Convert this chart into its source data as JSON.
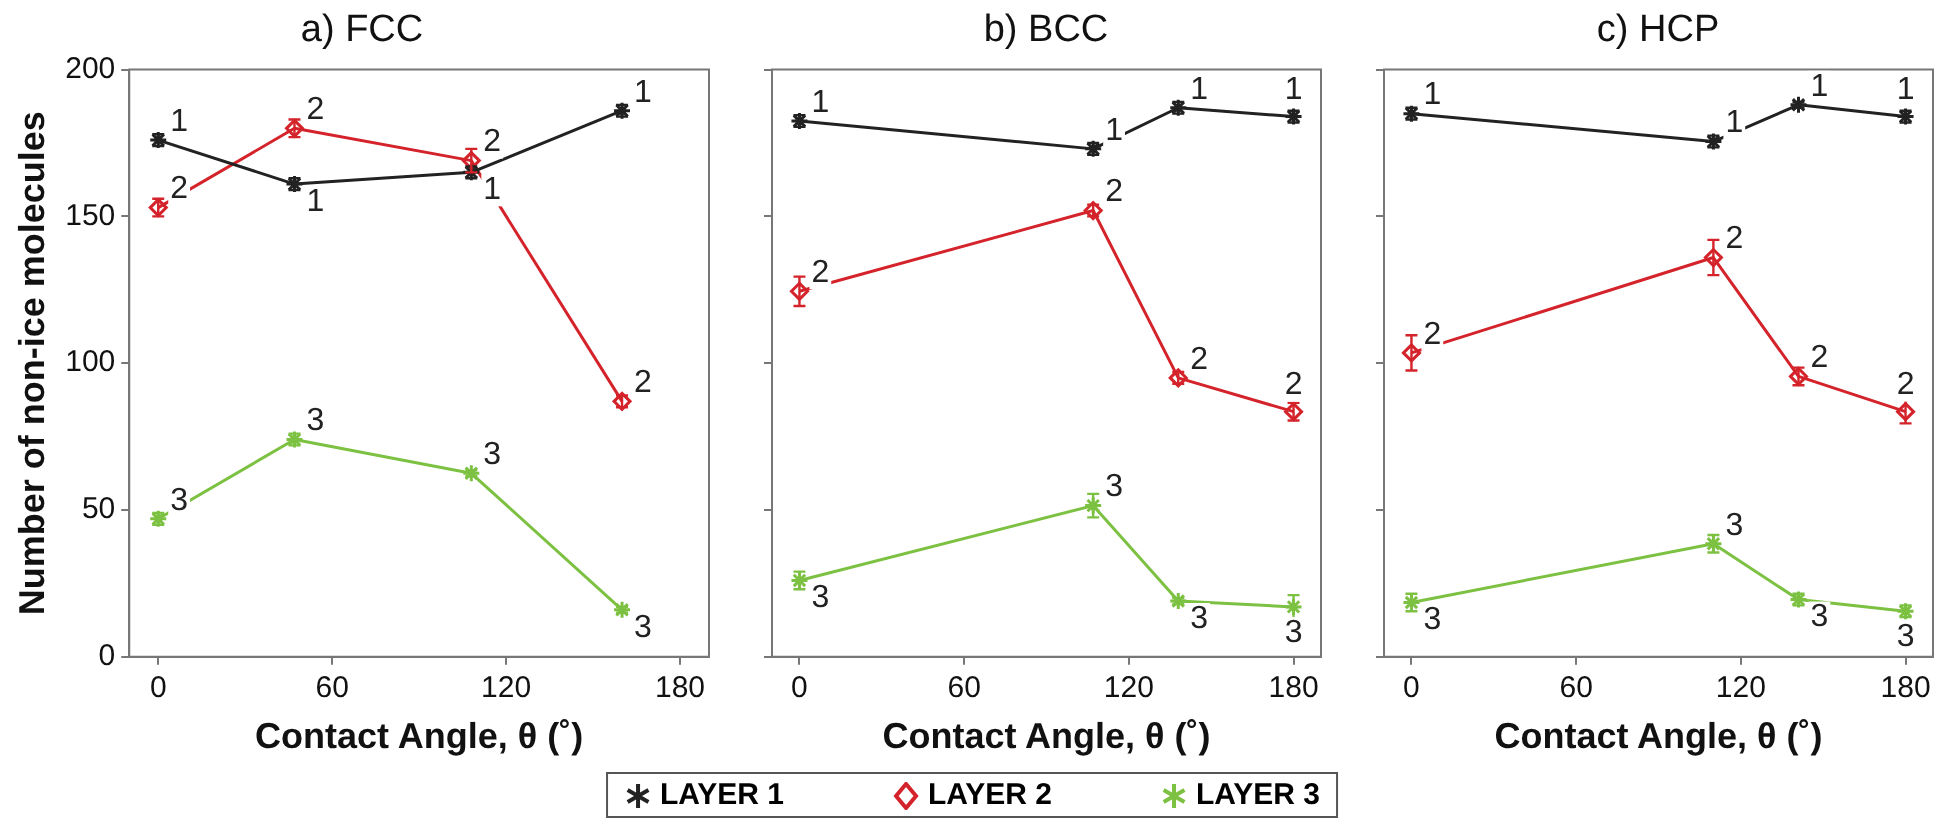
{
  "chart_data": [
    {
      "type": "line",
      "title": "a) FCC",
      "xlabel": "Contact Angle, θ (˚)",
      "ylabel": "Number of non-ice molecules",
      "x": [
        0,
        47,
        108,
        160
      ],
      "xlim": [
        -10,
        190
      ],
      "xticks": [
        0,
        60,
        120,
        180
      ],
      "ylim": [
        0,
        200
      ],
      "yticks": [
        0,
        50,
        100,
        150,
        200
      ],
      "grid": false,
      "legend": "bottom",
      "line_style": "solid",
      "series": [
        {
          "name": "LAYER 1",
          "color": "#222222",
          "marker": "cross",
          "values": [
            176,
            161,
            165,
            186
          ],
          "errors": [
            2,
            2,
            2,
            2
          ]
        },
        {
          "name": "LAYER 2",
          "color": "#d4232a",
          "marker": "diamond",
          "values": [
            153,
            180,
            169,
            87
          ],
          "errors": [
            3,
            3,
            4,
            2
          ]
        },
        {
          "name": "LAYER 3",
          "color": "#7dc142",
          "marker": "cross",
          "values": [
            47,
            74,
            62.5,
            16
          ],
          "errors": [
            2,
            2,
            1,
            1
          ]
        }
      ],
      "annotations": [
        {
          "text": "1",
          "x": 0,
          "y": 176
        },
        {
          "text": "1",
          "x": 47,
          "y": 161
        },
        {
          "text": "1",
          "x": 108,
          "y": 165
        },
        {
          "text": "1",
          "x": 160,
          "y": 186
        },
        {
          "text": "2",
          "x": 0,
          "y": 153
        },
        {
          "text": "2",
          "x": 47,
          "y": 180
        },
        {
          "text": "2",
          "x": 108,
          "y": 169
        },
        {
          "text": "2",
          "x": 160,
          "y": 87
        },
        {
          "text": "3",
          "x": 0,
          "y": 47
        },
        {
          "text": "3",
          "x": 47,
          "y": 74
        },
        {
          "text": "3",
          "x": 108,
          "y": 62.5
        },
        {
          "text": "3",
          "x": 160,
          "y": 16
        }
      ]
    },
    {
      "type": "line",
      "title": "b) BCC",
      "xlabel": "Contact Angle, θ (˚)",
      "x": [
        0,
        107,
        138,
        180
      ],
      "xlim": [
        -10,
        190
      ],
      "xticks": [
        0,
        60,
        120,
        180
      ],
      "ylim": [
        0,
        200
      ],
      "yticks": [
        0,
        50,
        100,
        150,
        200
      ],
      "tick_labels": "x",
      "grid": false,
      "legend": "bottom",
      "line_style": "solid",
      "series": [
        {
          "name": "LAYER 1",
          "color": "#222222",
          "marker": "cross",
          "values": [
            182.5,
            173,
            187,
            184
          ],
          "errors": [
            2,
            2,
            2,
            2
          ]
        },
        {
          "name": "LAYER 2",
          "color": "#d4232a",
          "marker": "diamond",
          "values": [
            124.5,
            152,
            95,
            83.5
          ],
          "errors": [
            5,
            2,
            2,
            3
          ]
        },
        {
          "name": "LAYER 3",
          "color": "#7dc142",
          "marker": "cross",
          "values": [
            26,
            51.5,
            19,
            17
          ],
          "errors": [
            3,
            4,
            1,
            4
          ]
        }
      ],
      "annotations": [
        {
          "text": "1",
          "x": 0,
          "y": 182.5
        },
        {
          "text": "1",
          "x": 107,
          "y": 173
        },
        {
          "text": "1",
          "x": 138,
          "y": 187
        },
        {
          "text": "1",
          "x": 180,
          "y": 184
        },
        {
          "text": "2",
          "x": 0,
          "y": 124.5
        },
        {
          "text": "2",
          "x": 107,
          "y": 152
        },
        {
          "text": "2",
          "x": 138,
          "y": 95
        },
        {
          "text": "2",
          "x": 180,
          "y": 83.5
        },
        {
          "text": "3",
          "x": 0,
          "y": 26
        },
        {
          "text": "3",
          "x": 107,
          "y": 51.5
        },
        {
          "text": "3",
          "x": 138,
          "y": 19
        },
        {
          "text": "3",
          "x": 180,
          "y": 17
        }
      ]
    },
    {
      "type": "line",
      "title": "c) HCP",
      "xlabel": "Contact Angle, θ (˚)",
      "x": [
        0,
        110,
        141,
        180
      ],
      "xlim": [
        -10,
        190
      ],
      "xticks": [
        0,
        60,
        120,
        180
      ],
      "ylim": [
        0,
        200
      ],
      "yticks": [
        0,
        50,
        100,
        150,
        200
      ],
      "tick_labels": "x",
      "grid": false,
      "legend": "bottom",
      "line_style": "solid",
      "series": [
        {
          "name": "LAYER 1",
          "color": "#222222",
          "marker": "cross",
          "values": [
            185,
            175.5,
            188,
            184
          ],
          "errors": [
            2,
            2,
            1,
            2
          ]
        },
        {
          "name": "LAYER 2",
          "color": "#d4232a",
          "marker": "diamond",
          "values": [
            103.5,
            136,
            95.5,
            83.5
          ],
          "errors": [
            6,
            6,
            3,
            4
          ]
        },
        {
          "name": "LAYER 3",
          "color": "#7dc142",
          "marker": "cross",
          "values": [
            18.5,
            38.5,
            19.5,
            15.5
          ],
          "errors": [
            3,
            3,
            2,
            2
          ]
        }
      ],
      "annotations": [
        {
          "text": "1",
          "x": 0,
          "y": 185
        },
        {
          "text": "1",
          "x": 110,
          "y": 175.5
        },
        {
          "text": "1",
          "x": 141,
          "y": 188
        },
        {
          "text": "1",
          "x": 180,
          "y": 184
        },
        {
          "text": "2",
          "x": 0,
          "y": 103.5
        },
        {
          "text": "2",
          "x": 110,
          "y": 136
        },
        {
          "text": "2",
          "x": 141,
          "y": 95.5
        },
        {
          "text": "2",
          "x": 180,
          "y": 83.5
        },
        {
          "text": "3",
          "x": 0,
          "y": 18.5
        },
        {
          "text": "3",
          "x": 110,
          "y": 38.5
        },
        {
          "text": "3",
          "x": 141,
          "y": 19.5
        },
        {
          "text": "3",
          "x": 180,
          "y": 15.5
        }
      ]
    }
  ]
}
